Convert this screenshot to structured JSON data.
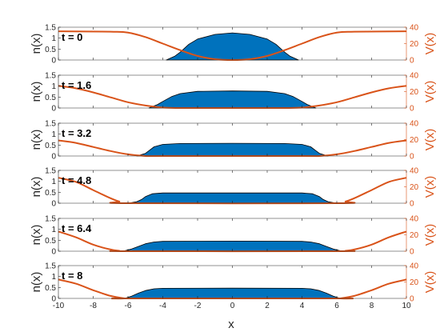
{
  "chart_data": {
    "type": "area",
    "xlabel": "x",
    "ylabel_left": "n(x)",
    "ylabel_right": "V(x)",
    "xlim": [
      -10,
      10
    ],
    "xticks": [
      -10,
      -8,
      -6,
      -4,
      -2,
      0,
      2,
      4,
      6,
      8,
      10
    ],
    "ylim_left": [
      0,
      1.5
    ],
    "yticks_left": [
      0,
      0.5,
      1,
      1.5
    ],
    "ytick_labels_left": [
      "0",
      "0.5",
      "1",
      "1.5"
    ],
    "ylim_right": [
      0,
      40
    ],
    "yticks_right": [
      0,
      20,
      40
    ],
    "colors": {
      "density": "#0072BD",
      "potential": "#D95319",
      "axis": "#262626"
    },
    "grid": false,
    "panels": [
      {
        "label": "t = 0",
        "density": {
          "x": [
            -3.8,
            -3.3,
            -3.0,
            -2.5,
            -2.0,
            -1.0,
            0.0,
            1.0,
            2.0,
            2.5,
            3.0,
            3.3,
            3.8
          ],
          "n": [
            0,
            0.18,
            0.36,
            0.72,
            0.96,
            1.17,
            1.24,
            1.17,
            0.96,
            0.72,
            0.36,
            0.18,
            0
          ]
        },
        "potential": {
          "x": [
            -10,
            -7.0,
            -6.0,
            -5.0,
            -4.0,
            -3.0,
            -2.0,
            -1.0,
            0.0,
            1.0,
            2.0,
            3.0,
            4.0,
            5.0,
            6.0,
            7.0,
            10
          ],
          "V": [
            35,
            34.5,
            33.5,
            28,
            20,
            12,
            5,
            1,
            0,
            1,
            5,
            12,
            20,
            28,
            33.5,
            34.5,
            35
          ]
        }
      },
      {
        "label": "t = 1.6",
        "density": {
          "x": [
            -4.8,
            -4.3,
            -4.0,
            -3.5,
            -3.0,
            -2.0,
            0.0,
            2.0,
            3.0,
            3.5,
            4.0,
            4.3,
            4.8
          ],
          "n": [
            0,
            0.16,
            0.3,
            0.52,
            0.66,
            0.76,
            0.78,
            0.76,
            0.66,
            0.52,
            0.3,
            0.16,
            0
          ]
        },
        "potential": {
          "x": [
            -10,
            -9.0,
            -8.0,
            -7.0,
            -6.0,
            -5.0,
            -4.0,
            -3.0,
            -2.0,
            2.0,
            3.0,
            4.0,
            5.0,
            6.0,
            7.0,
            8.0,
            9.0,
            10
          ],
          "V": [
            27,
            24,
            19,
            13,
            7,
            3,
            0.5,
            0,
            0,
            0,
            0,
            0.5,
            3,
            7,
            13,
            19,
            24,
            27
          ]
        }
      },
      {
        "label": "t = 3.2",
        "density": {
          "x": [
            -5.5,
            -5.0,
            -4.8,
            -4.5,
            -4.0,
            -3.0,
            0.0,
            3.0,
            4.0,
            4.5,
            4.8,
            5.0,
            5.5
          ],
          "n": [
            0,
            0.12,
            0.24,
            0.42,
            0.53,
            0.57,
            0.58,
            0.57,
            0.53,
            0.42,
            0.24,
            0.12,
            0
          ]
        },
        "potential": {
          "x": [
            -10,
            -9.0,
            -8.0,
            -7.0,
            -6.0,
            -5.0,
            -4.0,
            4.0,
            5.0,
            6.0,
            7.0,
            8.0,
            9.0,
            10
          ],
          "V": [
            19,
            16,
            11,
            6,
            2,
            0,
            0,
            0,
            0,
            2,
            6,
            11,
            16,
            19
          ]
        }
      },
      {
        "label": "t = 4.8",
        "density": {
          "x": [
            -6.0,
            -5.5,
            -5.2,
            -5.0,
            -4.6,
            -4.0,
            0.0,
            4.0,
            4.6,
            5.0,
            5.2,
            5.5,
            6.0
          ],
          "n": [
            0,
            0.07,
            0.18,
            0.3,
            0.43,
            0.47,
            0.47,
            0.47,
            0.43,
            0.3,
            0.18,
            0.07,
            0
          ]
        },
        "potential": {
          "x": [
            -10,
            -9.0,
            -8.0,
            -7.0,
            -6.5,
            -6.0,
            6.0,
            6.5,
            7.0,
            8.0,
            9.0,
            10
          ],
          "V": [
            31,
            26,
            16,
            6,
            2,
            0,
            0,
            2,
            6,
            16,
            26,
            31
          ]
        }
      },
      {
        "label": "t = 6.4",
        "density": {
          "x": [
            -6.3,
            -5.8,
            -5.4,
            -5.0,
            -4.5,
            -4.0,
            0.0,
            4.0,
            4.5,
            5.0,
            5.4,
            5.8,
            6.3
          ],
          "n": [
            0,
            0.1,
            0.22,
            0.34,
            0.42,
            0.45,
            0.46,
            0.45,
            0.42,
            0.34,
            0.22,
            0.1,
            0
          ]
        },
        "potential": {
          "x": [
            -10,
            -9.0,
            -8.0,
            -7.0,
            -6.5,
            -6.0,
            6.0,
            6.5,
            7.0,
            8.0,
            9.0,
            10
          ],
          "V": [
            24,
            17,
            8,
            2,
            0.5,
            0,
            0,
            0.5,
            2,
            8,
            17,
            24
          ]
        }
      },
      {
        "label": "t = 8",
        "density": {
          "x": [
            -6.2,
            -5.8,
            -5.4,
            -5.0,
            -4.5,
            -4.0,
            0.0,
            4.0,
            4.5,
            5.0,
            5.4,
            5.8,
            6.2
          ],
          "n": [
            0,
            0.1,
            0.24,
            0.36,
            0.44,
            0.46,
            0.47,
            0.46,
            0.44,
            0.36,
            0.24,
            0.1,
            0
          ]
        },
        "potential": {
          "x": [
            -10,
            -9.0,
            -8.0,
            -7.0,
            -6.2,
            -6.0,
            6.0,
            6.2,
            7.0,
            8.0,
            9.0,
            10
          ],
          "V": [
            23,
            18,
            10,
            3,
            0,
            0,
            0,
            0,
            3,
            10,
            18,
            23
          ]
        }
      }
    ]
  }
}
